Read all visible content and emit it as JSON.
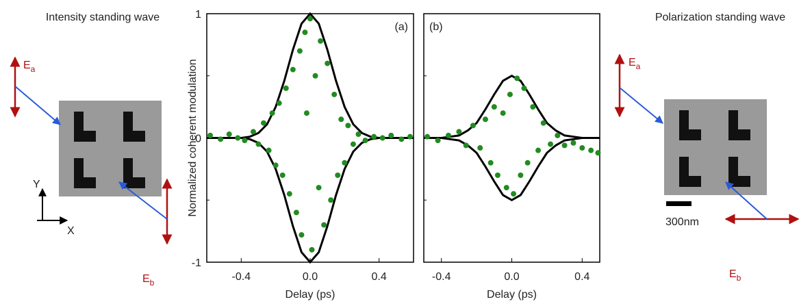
{
  "chart_data": [
    {
      "type": "scatter",
      "annotation": "(a)",
      "xlabel": "Delay (ps)",
      "ylabel": "Normalized coherent modulation",
      "xlim": [
        -0.6,
        0.6
      ],
      "ylim": [
        -1,
        1
      ],
      "xticks": [
        -0.4,
        {
          "value": 0,
          "label": "0.0"
        },
        0.4
      ],
      "yticks": [
        -1,
        0,
        1
      ],
      "yminor": [
        -0.5,
        0.5
      ],
      "ytick_labels": true,
      "color": "#228b22",
      "curve_color": "#000000",
      "x": [
        -0.58,
        -0.52,
        -0.47,
        -0.42,
        -0.38,
        -0.33,
        -0.3,
        -0.27,
        -0.24,
        -0.22,
        -0.2,
        -0.18,
        -0.16,
        -0.14,
        -0.12,
        -0.1,
        -0.08,
        -0.06,
        -0.05,
        -0.03,
        -0.02,
        0,
        0.01,
        0.03,
        0.05,
        0.06,
        0.08,
        0.1,
        0.12,
        0.14,
        0.16,
        0.18,
        0.2,
        0.22,
        0.25,
        0.28,
        0.32,
        0.37,
        0.42,
        0.47,
        0.53,
        0.58
      ],
      "values": [
        0.02,
        -0.01,
        0.03,
        0,
        -0.02,
        0.05,
        -0.05,
        0.12,
        -0.1,
        0.2,
        -0.22,
        0.28,
        -0.3,
        0.4,
        -0.45,
        0.55,
        -0.6,
        0.7,
        -0.78,
        0.85,
        0.2,
        0.96,
        -0.9,
        0.5,
        -0.4,
        0.78,
        -0.7,
        0.6,
        -0.5,
        0.35,
        -0.3,
        0.15,
        -0.2,
        0.1,
        -0.05,
        0.03,
        -0.02,
        0.01,
        0,
        0.02,
        -0.01,
        0.01
      ],
      "curves": [
        {
          "x": [
            -0.6,
            -0.5,
            -0.4,
            -0.35,
            -0.3,
            -0.25,
            -0.2,
            -0.15,
            -0.1,
            -0.05,
            0,
            0.05,
            0.1,
            0.15,
            0.2,
            0.25,
            0.3,
            0.35,
            0.4,
            0.5,
            0.6
          ],
          "values": [
            0,
            0,
            0,
            0.01,
            0.04,
            0.11,
            0.25,
            0.46,
            0.71,
            0.92,
            1,
            0.92,
            0.71,
            0.46,
            0.25,
            0.11,
            0.04,
            0.01,
            0,
            0,
            0
          ]
        },
        {
          "x": [
            -0.6,
            -0.5,
            -0.4,
            -0.35,
            -0.3,
            -0.25,
            -0.2,
            -0.15,
            -0.1,
            -0.05,
            0,
            0.05,
            0.1,
            0.15,
            0.2,
            0.25,
            0.3,
            0.35,
            0.4,
            0.5,
            0.6
          ],
          "values": [
            0,
            0,
            0,
            -0.01,
            -0.04,
            -0.11,
            -0.25,
            -0.46,
            -0.71,
            -0.92,
            -1,
            -0.92,
            -0.71,
            -0.46,
            -0.25,
            -0.11,
            -0.04,
            -0.01,
            0,
            0,
            0
          ]
        }
      ]
    },
    {
      "type": "scatter",
      "annotation": "(b)",
      "xlabel": "Delay (ps)",
      "xlim": [
        -0.5,
        0.5
      ],
      "ylim": [
        -1,
        1
      ],
      "xticks": [
        -0.4,
        {
          "value": 0,
          "label": "0.0"
        },
        0.4
      ],
      "yticks": [
        -1,
        0,
        1
      ],
      "yminor": [
        -0.5,
        0.5
      ],
      "ytick_labels": false,
      "color": "#228b22",
      "curve_color": "#000000",
      "x": [
        -0.48,
        -0.42,
        -0.36,
        -0.3,
        -0.26,
        -0.22,
        -0.18,
        -0.15,
        -0.12,
        -0.1,
        -0.08,
        -0.05,
        -0.03,
        -0.01,
        0.01,
        0.03,
        0.05,
        0.07,
        0.09,
        0.12,
        0.15,
        0.18,
        0.22,
        0.26,
        0.3,
        0.35,
        0.4,
        0.45,
        0.49
      ],
      "values": [
        0.01,
        -0.02,
        0.02,
        0.05,
        -0.06,
        0.1,
        -0.08,
        0.15,
        -0.2,
        0.25,
        -0.3,
        0.2,
        -0.4,
        0.35,
        -0.45,
        0.48,
        -0.3,
        0.4,
        -0.2,
        0.25,
        -0.1,
        0.12,
        -0.05,
        0.02,
        -0.06,
        -0.04,
        -0.08,
        -0.1,
        -0.12
      ],
      "curves": [
        {
          "x": [
            -0.5,
            -0.4,
            -0.35,
            -0.3,
            -0.25,
            -0.2,
            -0.15,
            -0.1,
            -0.05,
            0,
            0.05,
            0.1,
            0.15,
            0.2,
            0.25,
            0.3,
            0.35,
            0.4,
            0.5
          ],
          "values": [
            0,
            0,
            0.01,
            0.02,
            0.06,
            0.12,
            0.23,
            0.35,
            0.46,
            0.5,
            0.46,
            0.35,
            0.23,
            0.12,
            0.06,
            0.02,
            0.01,
            0,
            0
          ]
        },
        {
          "x": [
            -0.5,
            -0.4,
            -0.35,
            -0.3,
            -0.25,
            -0.2,
            -0.15,
            -0.1,
            -0.05,
            0,
            0.05,
            0.1,
            0.15,
            0.2,
            0.25,
            0.3,
            0.35,
            0.4,
            0.5
          ],
          "values": [
            0,
            0,
            -0.01,
            -0.02,
            -0.06,
            -0.12,
            -0.23,
            -0.35,
            -0.46,
            -0.5,
            -0.46,
            -0.35,
            -0.23,
            -0.12,
            -0.06,
            -0.02,
            -0.01,
            0,
            0
          ]
        }
      ]
    }
  ],
  "diagrams": {
    "left": {
      "title": "Intensity standing wave",
      "ea": [
        "E",
        "a"
      ],
      "eb": [
        "E",
        "b"
      ],
      "axis_x": "X",
      "axis_y": "Y"
    },
    "right": {
      "title": "Polarization standing wave",
      "ea": [
        "E",
        "a"
      ],
      "eb": [
        "E",
        "b"
      ],
      "scale": "300nm"
    }
  }
}
